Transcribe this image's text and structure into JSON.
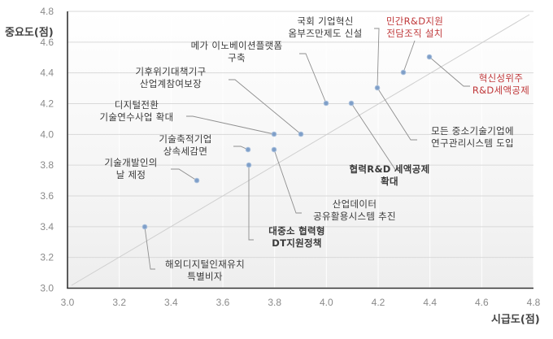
{
  "chart_data": {
    "type": "scatter",
    "title": "",
    "xlabel": "시급도(점)",
    "ylabel": "중요도(점)",
    "xlim": [
      3.0,
      4.8
    ],
    "ylim": [
      3.0,
      4.8
    ],
    "x_ticks": [
      "3.0",
      "3.2",
      "3.4",
      "3.6",
      "3.8",
      "4.0",
      "4.2",
      "4.4",
      "4.6",
      "4.8"
    ],
    "y_ticks": [
      "3.0",
      "3.2",
      "3.4",
      "3.6",
      "3.8",
      "4.0",
      "4.2",
      "4.4",
      "4.6",
      "4.8"
    ],
    "grid": true,
    "reference_line": "y = x (diagonal)",
    "legend": null,
    "points": [
      {
        "label": "해외디지털인재유치 특별비자",
        "lines": [
          "해외디지털인재유치",
          "특별비자"
        ],
        "x": 3.3,
        "y": 3.4,
        "highlight": false,
        "bold": false
      },
      {
        "label": "기술개발인의 날 제정",
        "lines": [
          "기술개발인의",
          "날 제정"
        ],
        "x": 3.5,
        "y": 3.7,
        "highlight": false,
        "bold": false
      },
      {
        "label": "대중소 협력형 DT지원정책",
        "lines": [
          "대중소 협력형",
          "DT지원정책"
        ],
        "x": 3.7,
        "y": 3.8,
        "highlight": false,
        "bold": true
      },
      {
        "label": "기술축적기업 상속세감면",
        "lines": [
          "기술축적기업",
          "상속세감면"
        ],
        "x": 3.7,
        "y": 3.9,
        "highlight": false,
        "bold": false
      },
      {
        "label": "산업데이터 공유활용시스템 추진",
        "lines": [
          "산업데이터",
          "공유활용시스템 추진"
        ],
        "x": 3.8,
        "y": 3.9,
        "highlight": false,
        "bold": false
      },
      {
        "label": "디지털전환 기술연수사업 확대",
        "lines": [
          "디지털전환",
          "기술연수사업 확대"
        ],
        "x": 3.8,
        "y": 4.0,
        "highlight": false,
        "bold": false
      },
      {
        "label": "기후위기대책기구 산업계참여보장",
        "lines": [
          "기후위기대책기구",
          "산업계참여보장"
        ],
        "x": 3.9,
        "y": 4.0,
        "highlight": false,
        "bold": false
      },
      {
        "label": "메가 이노베이션플랫폼 구축",
        "lines": [
          "메가 이노베이션플랫폼",
          "구축"
        ],
        "x": 4.0,
        "y": 4.2,
        "highlight": false,
        "bold": false
      },
      {
        "label": "협력R&D 세액공제 확대",
        "lines": [
          "협력R&D 세액공제",
          "확대"
        ],
        "x": 4.1,
        "y": 4.2,
        "highlight": false,
        "bold": true
      },
      {
        "label": "국회 기업혁신 옴부즈만제도 신설",
        "lines": [
          "국회 기업혁신",
          "옴부즈만제도 신설"
        ],
        "x": 4.2,
        "y": 4.3,
        "highlight": false,
        "bold": false
      },
      {
        "label": "모든 중소기술기업에 연구관리시스템 도입",
        "lines": [
          "모든 중소기술기업에",
          "연구관리시스템 도입"
        ],
        "x": 4.2,
        "y": 4.3,
        "highlight": false,
        "bold": false
      },
      {
        "label": "민간R&D지원 전담조직 설치",
        "lines": [
          "민간R&D지원",
          "전담조직 설치"
        ],
        "x": 4.3,
        "y": 4.4,
        "highlight": true,
        "bold": false
      },
      {
        "label": "혁신성위주 R&D세액공제",
        "lines": [
          "혁신성위주",
          "R&D세액공제"
        ],
        "x": 4.4,
        "y": 4.5,
        "highlight": true,
        "bold": false
      }
    ]
  },
  "colors": {
    "point": "#7f9fc8",
    "highlight_text": "#c0393b",
    "text": "#3a3a3a",
    "tick_text": "#8a8a8a",
    "gridline": "#d9d9d9",
    "axis": "#333333"
  }
}
